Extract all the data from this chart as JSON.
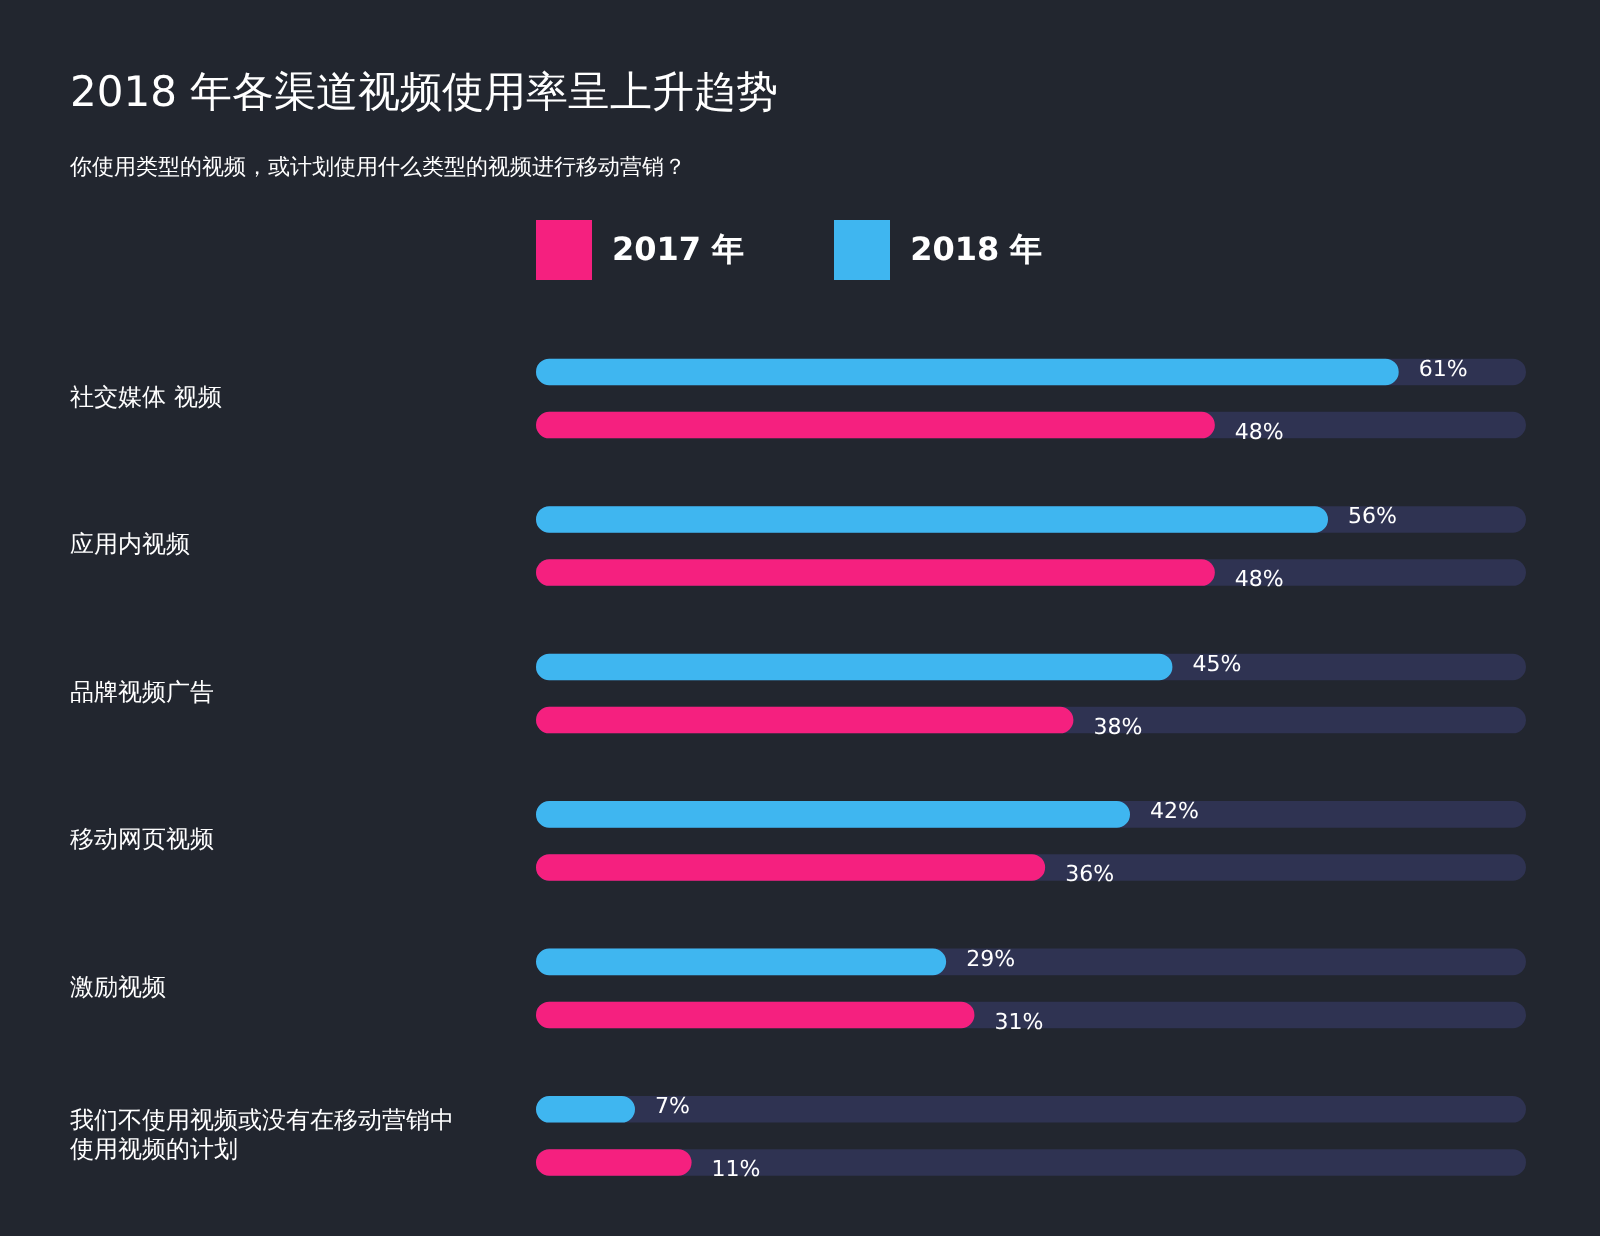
{
  "chart_data": {
    "type": "bar",
    "orientation": "horizontal",
    "title": "2018 年各渠道视频使用率呈上升趋势",
    "subtitle": "你使用类型的视频，或计划使用什么类型的视频进行移动营销？",
    "categories": [
      "社交媒体 视频",
      "应用内视频",
      "品牌视频广告",
      "移动网页视频",
      "激励视频",
      "我们不使用视频或没有在移动营销中使用视频的计划"
    ],
    "series": [
      {
        "name": "2017 年",
        "color": "#f5207f",
        "values": [
          48,
          48,
          38,
          36,
          31,
          11
        ],
        "value_labels": [
          "48%",
          "48%",
          "38%",
          "36%",
          "31%",
          "11%"
        ]
      },
      {
        "name": "2018 年",
        "color": "#3fb6f0",
        "values": [
          61,
          56,
          45,
          42,
          29,
          7
        ],
        "value_labels": [
          "61%",
          "56%",
          "45%",
          "42%",
          "29%",
          "7%"
        ]
      }
    ],
    "legend": "top",
    "tick_labels": "y"
  }
}
